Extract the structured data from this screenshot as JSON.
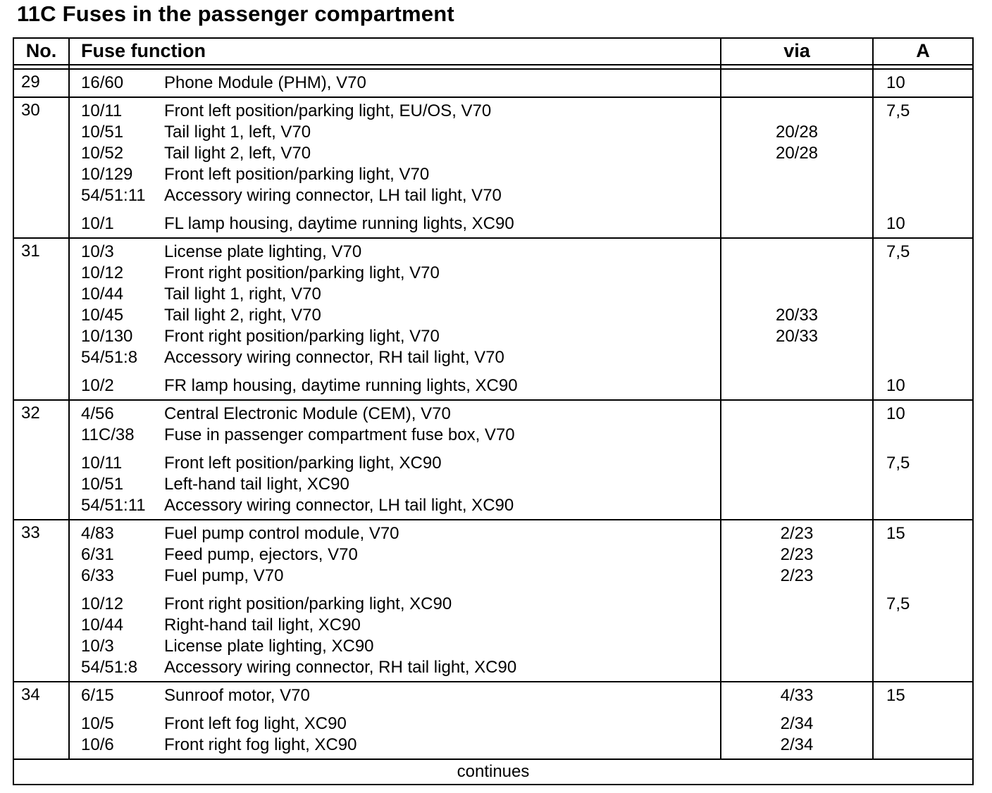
{
  "page_title": "11C Fuses in the passenger compartment",
  "colors": {
    "text": "#000000",
    "background": "#ffffff",
    "border": "#000000"
  },
  "table": {
    "columns": [
      {
        "label": "No."
      },
      {
        "label": "Fuse function"
      },
      {
        "label": "via"
      },
      {
        "label": "A"
      }
    ],
    "rows": [
      {
        "no": "29",
        "groups": [
          [
            {
              "code": "16/60",
              "desc": "Phone Module (PHM), V70",
              "via": "",
              "amp": "10"
            }
          ]
        ]
      },
      {
        "no": "30",
        "groups": [
          [
            {
              "code": "10/11",
              "desc": "Front left position/parking light, EU/OS, V70",
              "via": "",
              "amp": "7,5"
            },
            {
              "code": "10/51",
              "desc": "Tail light 1, left, V70",
              "via": "20/28",
              "amp": ""
            },
            {
              "code": "10/52",
              "desc": "Tail light 2, left, V70",
              "via": "20/28",
              "amp": ""
            },
            {
              "code": "10/129",
              "desc": "Front left position/parking light, V70",
              "via": "",
              "amp": ""
            },
            {
              "code": "54/51:11",
              "desc": "Accessory wiring connector, LH tail light, V70",
              "via": "",
              "amp": ""
            }
          ],
          [
            {
              "code": "10/1",
              "desc": "FL lamp housing, daytime running lights, XC90",
              "via": "",
              "amp": "10"
            }
          ]
        ]
      },
      {
        "no": "31",
        "groups": [
          [
            {
              "code": "10/3",
              "desc": "License plate lighting, V70",
              "via": "",
              "amp": "7,5"
            },
            {
              "code": "10/12",
              "desc": "Front right position/parking light, V70",
              "via": "",
              "amp": ""
            },
            {
              "code": "10/44",
              "desc": "Tail light 1, right, V70",
              "via": "",
              "amp": ""
            },
            {
              "code": "10/45",
              "desc": "Tail light 2, right, V70",
              "via": "20/33",
              "amp": ""
            },
            {
              "code": "10/130",
              "desc": "Front right position/parking light, V70",
              "via": "20/33",
              "amp": ""
            },
            {
              "code": "54/51:8",
              "desc": "Accessory wiring connector, RH tail light, V70",
              "via": "",
              "amp": ""
            }
          ],
          [
            {
              "code": "10/2",
              "desc": "FR lamp housing, daytime running lights, XC90",
              "via": "",
              "amp": "10"
            }
          ]
        ]
      },
      {
        "no": "32",
        "groups": [
          [
            {
              "code": "4/56",
              "desc": "Central Electronic Module (CEM), V70",
              "via": "",
              "amp": "10"
            },
            {
              "code": "11C/38",
              "desc": "Fuse in passenger compartment fuse box, V70",
              "via": "",
              "amp": ""
            }
          ],
          [
            {
              "code": "10/11",
              "desc": "Front left position/parking light, XC90",
              "via": "",
              "amp": "7,5"
            },
            {
              "code": "10/51",
              "desc": "Left-hand tail light, XC90",
              "via": "",
              "amp": ""
            },
            {
              "code": "54/51:11",
              "desc": "Accessory wiring connector, LH tail light, XC90",
              "via": "",
              "amp": ""
            }
          ]
        ]
      },
      {
        "no": "33",
        "groups": [
          [
            {
              "code": "4/83",
              "desc": "Fuel pump control module, V70",
              "via": "2/23",
              "amp": "15"
            },
            {
              "code": "6/31",
              "desc": "Feed pump, ejectors, V70",
              "via": "2/23",
              "amp": ""
            },
            {
              "code": "6/33",
              "desc": "Fuel pump, V70",
              "via": "2/23",
              "amp": ""
            }
          ],
          [
            {
              "code": "10/12",
              "desc": "Front right position/parking light, XC90",
              "via": "",
              "amp": "7,5"
            },
            {
              "code": "10/44",
              "desc": "Right-hand tail light, XC90",
              "via": "",
              "amp": ""
            },
            {
              "code": "10/3",
              "desc": "License plate lighting, XC90",
              "via": "",
              "amp": ""
            },
            {
              "code": "54/51:8",
              "desc": "Accessory wiring connector, RH tail light, XC90",
              "via": "",
              "amp": ""
            }
          ]
        ]
      },
      {
        "no": "34",
        "groups": [
          [
            {
              "code": "6/15",
              "desc": "Sunroof motor, V70",
              "via": "4/33",
              "amp": "15"
            }
          ],
          [
            {
              "code": "10/5",
              "desc": "Front left fog light, XC90",
              "via": "2/34",
              "amp": ""
            },
            {
              "code": "10/6",
              "desc": "Front right fog light, XC90",
              "via": "2/34",
              "amp": ""
            }
          ]
        ]
      }
    ],
    "footer": "continues"
  }
}
